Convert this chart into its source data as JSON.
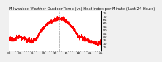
{
  "title": "Milwaukee Weather Outdoor Temp (vs) Heat Index per Minute (Last 24 Hours)",
  "line_color": "#ff0000",
  "background_color": "#f0f0f0",
  "plot_bg_color": "#ffffff",
  "grid_color": "#cccccc",
  "ylim": [
    20,
    78
  ],
  "yticks": [
    25,
    30,
    35,
    40,
    45,
    50,
    55,
    60,
    65,
    70,
    75
  ],
  "vlines": [
    0.285,
    0.54
  ],
  "vline_color": "#999999",
  "num_points": 1440,
  "title_fontsize": 3.8,
  "tick_fontsize": 3.2,
  "line_width": 0.55
}
